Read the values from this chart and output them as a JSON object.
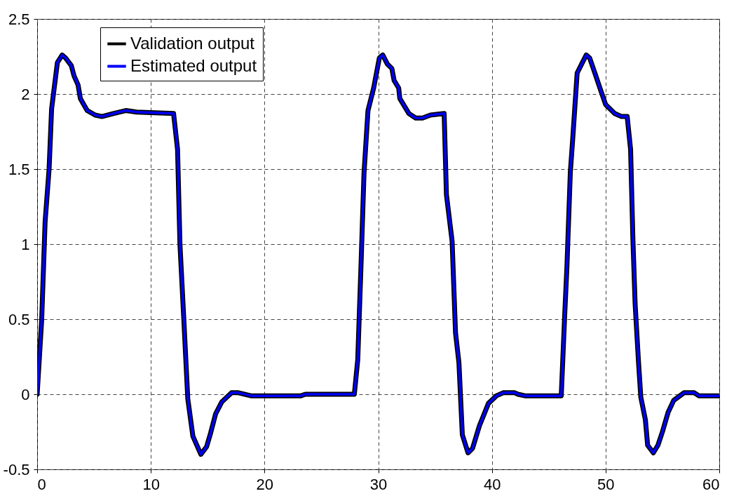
{
  "chart_data": {
    "type": "line",
    "x": [
      0,
      0.4,
      0.7,
      1.05,
      1.27,
      1.78,
      2.2,
      2.5,
      3.0,
      3.25,
      3.6,
      3.8,
      4.4,
      5.1,
      5.7,
      6.7,
      7.8,
      8.75,
      12.0,
      12.35,
      12.56,
      12.9,
      13.25,
      13.7,
      14.4,
      14.9,
      15.25,
      15.7,
      16.25,
      17.1,
      17.7,
      18.8,
      23.2,
      23.6,
      27.9,
      28.2,
      28.5,
      28.75,
      29.1,
      29.6,
      30.1,
      30.4,
      30.8,
      31.2,
      31.4,
      31.8,
      31.9,
      32.7,
      33.3,
      33.9,
      34.6,
      35.8,
      36.0,
      36.5,
      36.8,
      37.1,
      37.4,
      37.9,
      38.3,
      38.9,
      39.7,
      40.4,
      41.0,
      42.0,
      42.3,
      42.9,
      46.1,
      46.4,
      46.6,
      46.9,
      47.1,
      47.5,
      47.9,
      48.3,
      48.6,
      49.1,
      49.5,
      50.0,
      50.8,
      51.4,
      51.9,
      52.2,
      52.4,
      52.6,
      52.9,
      53.1,
      53.5,
      53.7,
      54.2,
      54.6,
      55.0,
      55.5,
      56.0,
      56.9,
      57.8,
      58.2,
      58.8,
      60
    ],
    "series": [
      {
        "name": "Validation output",
        "color": "#000000",
        "values": [
          0,
          0.5,
          1.15,
          1.5,
          1.9,
          2.21,
          2.26,
          2.24,
          2.19,
          2.12,
          2.06,
          1.97,
          1.89,
          1.86,
          1.85,
          1.87,
          1.89,
          1.88,
          1.87,
          1.63,
          1.0,
          0.5,
          -0.03,
          -0.28,
          -0.4,
          -0.35,
          -0.26,
          -0.13,
          -0.05,
          0.01,
          0.01,
          -0.01,
          -0.01,
          0,
          0,
          0.23,
          0.89,
          1.47,
          1.89,
          2.04,
          2.24,
          2.26,
          2.2,
          2.17,
          2.09,
          2.04,
          1.97,
          1.87,
          1.84,
          1.84,
          1.86,
          1.87,
          1.33,
          1.02,
          0.41,
          0.21,
          -0.27,
          -0.39,
          -0.36,
          -0.21,
          -0.06,
          -0.01,
          0.01,
          0.01,
          0,
          -0.01,
          -0.01,
          0.52,
          0.85,
          1.48,
          1.69,
          2.14,
          2.2,
          2.26,
          2.24,
          2.13,
          2.04,
          1.93,
          1.87,
          1.85,
          1.85,
          1.63,
          1.04,
          0.6,
          0.21,
          -0.02,
          -0.17,
          -0.34,
          -0.39,
          -0.34,
          -0.25,
          -0.12,
          -0.04,
          0.01,
          0.01,
          -0.01,
          -0.01,
          -0.01
        ]
      },
      {
        "name": "Estimated output",
        "color": "#0000ff",
        "values": [
          0,
          0.5,
          1.15,
          1.5,
          1.9,
          2.21,
          2.26,
          2.24,
          2.19,
          2.12,
          2.06,
          1.97,
          1.89,
          1.86,
          1.85,
          1.87,
          1.89,
          1.88,
          1.87,
          1.63,
          1.0,
          0.5,
          -0.03,
          -0.28,
          -0.4,
          -0.35,
          -0.26,
          -0.13,
          -0.05,
          0.01,
          0.01,
          -0.01,
          -0.01,
          0,
          0,
          0.23,
          0.89,
          1.47,
          1.89,
          2.04,
          2.24,
          2.26,
          2.2,
          2.17,
          2.09,
          2.04,
          1.97,
          1.87,
          1.84,
          1.84,
          1.86,
          1.87,
          1.33,
          1.02,
          0.41,
          0.21,
          -0.27,
          -0.39,
          -0.36,
          -0.21,
          -0.06,
          -0.01,
          0.01,
          0.01,
          0,
          -0.01,
          -0.01,
          0.52,
          0.85,
          1.48,
          1.69,
          2.14,
          2.2,
          2.26,
          2.24,
          2.13,
          2.04,
          1.93,
          1.87,
          1.85,
          1.85,
          1.63,
          1.04,
          0.6,
          0.21,
          -0.02,
          -0.17,
          -0.34,
          -0.39,
          -0.34,
          -0.25,
          -0.12,
          -0.04,
          0.01,
          0.01,
          -0.01,
          -0.01,
          -0.01
        ]
      }
    ],
    "xlim": [
      0,
      60
    ],
    "xticks": [
      0,
      10,
      20,
      30,
      40,
      50,
      60
    ],
    "ylim": [
      -0.5,
      2.5
    ],
    "yticks": [
      -0.5,
      0,
      0.5,
      1,
      1.5,
      2,
      2.5
    ],
    "grid": true,
    "legend": "top left"
  }
}
